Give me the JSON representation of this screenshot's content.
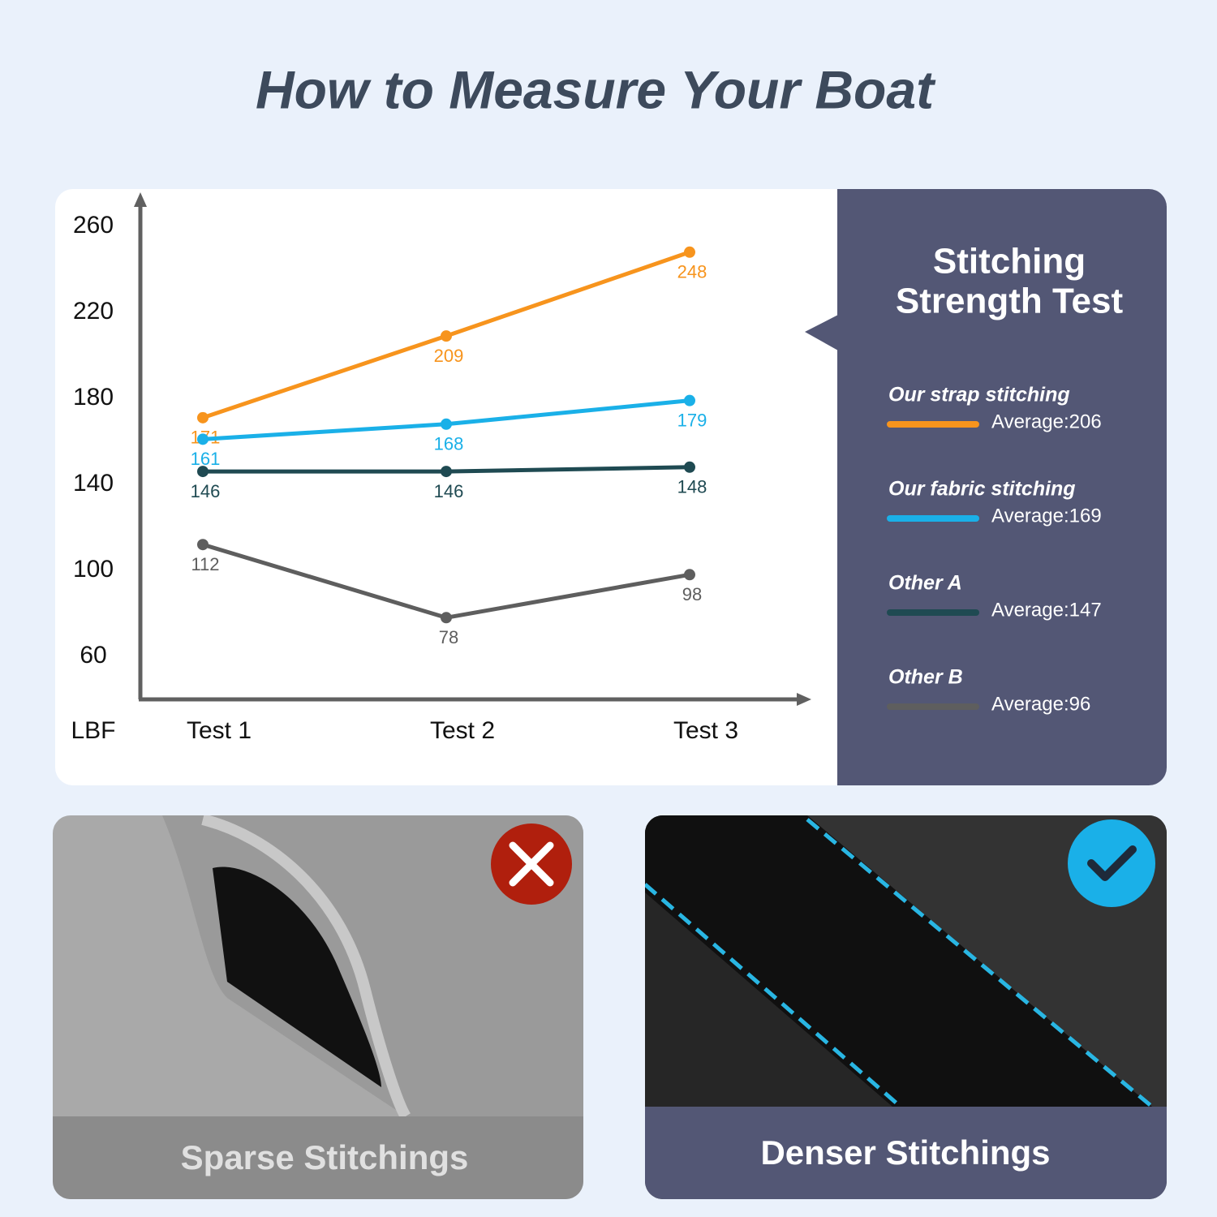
{
  "title": "How to Measure Your Boat",
  "chart_data": {
    "type": "line",
    "legend_title": [
      "Stitching",
      "Strength Test"
    ],
    "ylabel": "LBF",
    "categories": [
      "Test 1",
      "Test 2",
      "Test 3"
    ],
    "series": [
      {
        "name": "Our strap stitching",
        "color": "#f7941d",
        "values": [
          171,
          209,
          248
        ],
        "average": "Average:206"
      },
      {
        "name": "Our fabric stitching",
        "color": "#1ab0e8",
        "values": [
          161,
          168,
          179
        ],
        "average": "Average:169"
      },
      {
        "name": "Other A",
        "color": "#1f4a52",
        "values": [
          146,
          146,
          148
        ],
        "average": "Average:147"
      },
      {
        "name": "Other B",
        "color": "#5e5e5e",
        "values": [
          112,
          78,
          98
        ],
        "average": "Average:96"
      }
    ],
    "ylim": [
      40,
      272
    ],
    "yticks": [
      60,
      100,
      140,
      180,
      220,
      260
    ],
    "grid": false
  },
  "panels": [
    {
      "caption": "Sparse Stitchings"
    },
    {
      "caption": "Denser Stitchings"
    }
  ]
}
